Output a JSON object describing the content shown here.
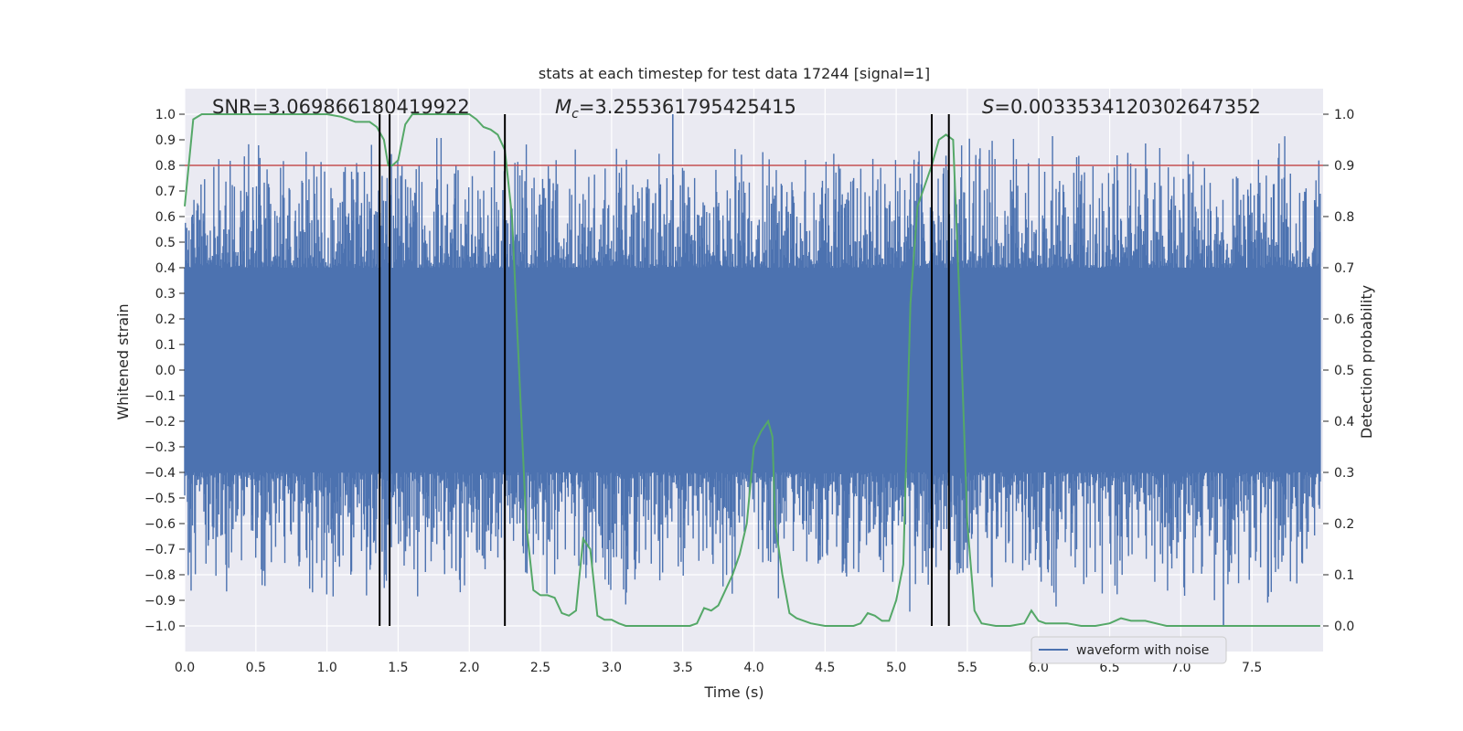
{
  "chart_data": {
    "type": "line",
    "title": "stats at each timestep for test data 17244 [signal=1]",
    "xlabel": "Time (s)",
    "ylabel": "Whitened strain",
    "ylabel_right": "Detection probability",
    "xlim": [
      0.0,
      8.0
    ],
    "ylim": [
      -1.1,
      1.1
    ],
    "ylim_right": [
      -0.05,
      1.05
    ],
    "x_ticks": [
      0.0,
      0.5,
      1.0,
      1.5,
      2.0,
      2.5,
      3.0,
      3.5,
      4.0,
      4.5,
      5.0,
      5.5,
      6.0,
      6.5,
      7.0,
      7.5
    ],
    "x_tick_labels": [
      "0.0",
      "0.5",
      "1.0",
      "1.5",
      "2.0",
      "2.5",
      "3.0",
      "3.5",
      "4.0",
      "4.5",
      "5.0",
      "5.5",
      "6.0",
      "6.5",
      "7.0",
      "7.5"
    ],
    "y_ticks": [
      1.0,
      0.9,
      0.8,
      0.7,
      0.6,
      0.5,
      0.4,
      0.3,
      0.2,
      0.1,
      0.0,
      -0.1,
      -0.2,
      -0.3,
      -0.4,
      -0.5,
      -0.6,
      -0.7,
      -0.8,
      -0.9,
      -1.0
    ],
    "y_tick_labels": [
      "1.0",
      "0.9",
      "0.8",
      "0.7",
      "0.6",
      "0.5",
      "0.4",
      "0.3",
      "0.2",
      "0.1",
      "0.0",
      "−0.1",
      "−0.2",
      "−0.3",
      "−0.4",
      "−0.5",
      "−0.6",
      "−0.7",
      "−0.8",
      "−0.9",
      "−1.0"
    ],
    "y_right_ticks": [
      1.0,
      0.9,
      0.8,
      0.7,
      0.6,
      0.5,
      0.4,
      0.3,
      0.2,
      0.1,
      0.0
    ],
    "y_right_tick_labels": [
      "1.0",
      "0.9",
      "0.8",
      "0.7",
      "0.6",
      "0.5",
      "0.4",
      "0.3",
      "0.2",
      "0.1",
      "0.0"
    ],
    "threshold": {
      "axis": "right",
      "value": 0.9,
      "color": "#c44e52"
    },
    "vertical_lines": [
      1.37,
      1.44,
      2.25,
      5.25,
      5.37
    ],
    "annotations": {
      "snr": "SNR=3.069866180419922",
      "mc_symbol": "M",
      "mc_sub": "c",
      "mc_value": "=3.255361795425415",
      "s_symbol": "S",
      "s_value": "=0.0033534120302647352"
    },
    "legend": {
      "position": "lower-right",
      "entries": [
        "waveform with noise"
      ]
    },
    "series": [
      {
        "name": "waveform with noise",
        "axis": "left",
        "color": "#4c72b0",
        "x_range": [
          0.0,
          7.98
        ],
        "core_amplitude": 0.4,
        "peak_envelope": 0.95,
        "peak_count": 1600,
        "max_value": 1.0,
        "min_value": -1.0
      },
      {
        "name": "detection probability",
        "axis": "right",
        "color": "#55a868",
        "x": [
          0.0,
          0.06,
          0.12,
          0.2,
          0.4,
          0.6,
          0.8,
          1.0,
          1.1,
          1.2,
          1.25,
          1.3,
          1.35,
          1.4,
          1.43,
          1.46,
          1.5,
          1.55,
          1.6,
          1.7,
          1.8,
          1.9,
          2.0,
          2.05,
          2.1,
          2.15,
          2.2,
          2.25,
          2.3,
          2.35,
          2.4,
          2.45,
          2.5,
          2.55,
          2.6,
          2.65,
          2.7,
          2.75,
          2.8,
          2.85,
          2.9,
          2.95,
          3.0,
          3.05,
          3.1,
          3.15,
          3.2,
          3.3,
          3.4,
          3.5,
          3.55,
          3.6,
          3.65,
          3.7,
          3.75,
          3.8,
          3.85,
          3.9,
          3.95,
          4.0,
          4.05,
          4.1,
          4.13,
          4.15,
          4.2,
          4.25,
          4.3,
          4.4,
          4.5,
          4.6,
          4.7,
          4.75,
          4.8,
          4.85,
          4.9,
          4.95,
          5.0,
          5.05,
          5.1,
          5.15,
          5.2,
          5.25,
          5.3,
          5.35,
          5.4,
          5.45,
          5.5,
          5.55,
          5.6,
          5.7,
          5.8,
          5.9,
          5.95,
          6.0,
          6.05,
          6.1,
          6.2,
          6.3,
          6.4,
          6.5,
          6.58,
          6.65,
          6.75,
          6.9,
          7.0,
          7.2,
          7.4,
          7.6,
          7.8,
          7.98
        ],
        "values": [
          0.82,
          0.99,
          1.0,
          1.0,
          1.0,
          1.0,
          1.0,
          1.0,
          0.995,
          0.985,
          0.985,
          0.985,
          0.975,
          0.95,
          0.9,
          0.9,
          0.91,
          0.98,
          1.0,
          1.0,
          1.0,
          1.0,
          1.0,
          0.99,
          0.975,
          0.97,
          0.96,
          0.93,
          0.8,
          0.5,
          0.2,
          0.07,
          0.06,
          0.06,
          0.055,
          0.025,
          0.02,
          0.03,
          0.17,
          0.15,
          0.02,
          0.012,
          0.012,
          0.005,
          0.0,
          0.0,
          0.0,
          0.0,
          0.0,
          0.0,
          0.0,
          0.005,
          0.035,
          0.03,
          0.04,
          0.07,
          0.1,
          0.14,
          0.2,
          0.35,
          0.38,
          0.4,
          0.37,
          0.2,
          0.1,
          0.025,
          0.015,
          0.005,
          0.0,
          0.0,
          0.0,
          0.005,
          0.025,
          0.02,
          0.01,
          0.01,
          0.05,
          0.12,
          0.63,
          0.82,
          0.86,
          0.9,
          0.95,
          0.96,
          0.95,
          0.6,
          0.2,
          0.03,
          0.005,
          0.0,
          0.0,
          0.005,
          0.03,
          0.01,
          0.005,
          0.005,
          0.005,
          0.0,
          0.0,
          0.005,
          0.015,
          0.01,
          0.01,
          0.0,
          0.0,
          0.0,
          0.0,
          0.0,
          0.0,
          0.0
        ]
      }
    ]
  }
}
